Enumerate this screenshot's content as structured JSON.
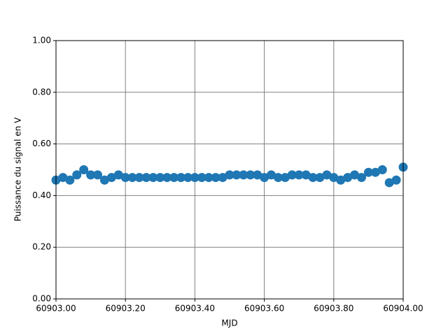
{
  "chart_data": {
    "type": "scatter",
    "x_label": "MJD",
    "y_label": "Puissance du signal en V",
    "xlim": [
      60903.0,
      60904.0
    ],
    "ylim": [
      0,
      1
    ],
    "xticks": [
      {
        "value": 60903.0,
        "label": "60903.00"
      },
      {
        "value": 60903.2,
        "label": "60903.20"
      },
      {
        "value": 60903.4,
        "label": "60903.40"
      },
      {
        "value": 60903.6,
        "label": "60903.60"
      },
      {
        "value": 60903.8,
        "label": "60903.80"
      },
      {
        "value": 60904.0,
        "label": "60904.00"
      }
    ],
    "yticks": [
      {
        "value": 0,
        "label": "0.00"
      },
      {
        "value": 0.2,
        "label": "0.20"
      },
      {
        "value": 0.4,
        "label": "0.40"
      },
      {
        "value": 0.6,
        "label": "0.60"
      },
      {
        "value": 0.8,
        "label": "0.80"
      },
      {
        "value": 1,
        "label": "1.00"
      }
    ],
    "grid": true,
    "grid_color": "#808080",
    "color": "#1f77b4",
    "x": [
      60903.0,
      60903.02,
      60903.04,
      60903.06,
      60903.08,
      60903.1,
      60903.12,
      60903.14,
      60903.16,
      60903.18,
      60903.2,
      60903.22,
      60903.24,
      60903.26,
      60903.28,
      60903.3,
      60903.32,
      60903.34,
      60903.36,
      60903.38,
      60903.4,
      60903.42,
      60903.44,
      60903.46,
      60903.48,
      60903.5,
      60903.52,
      60903.54,
      60903.56,
      60903.58,
      60903.6,
      60903.62,
      60903.64,
      60903.66,
      60903.68,
      60903.7,
      60903.72,
      60903.74,
      60903.76,
      60903.78,
      60903.8,
      60903.82,
      60903.84,
      60903.86,
      60903.88,
      60903.9,
      60903.92,
      60903.94,
      60903.96,
      60903.98,
      60904.0
    ],
    "values": [
      0.46,
      0.47,
      0.46,
      0.48,
      0.5,
      0.48,
      0.48,
      0.46,
      0.47,
      0.48,
      0.47,
      0.47,
      0.47,
      0.47,
      0.47,
      0.47,
      0.47,
      0.47,
      0.47,
      0.47,
      0.47,
      0.47,
      0.47,
      0.47,
      0.47,
      0.48,
      0.48,
      0.48,
      0.48,
      0.48,
      0.47,
      0.48,
      0.47,
      0.47,
      0.48,
      0.48,
      0.48,
      0.47,
      0.47,
      0.48,
      0.47,
      0.46,
      0.47,
      0.48,
      0.47,
      0.49,
      0.49,
      0.5,
      0.45,
      0.46,
      0.51
    ]
  }
}
